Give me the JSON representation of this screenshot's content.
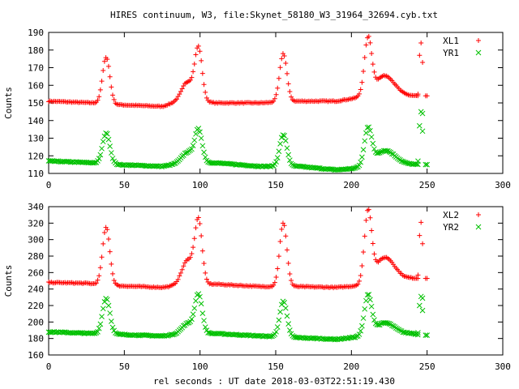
{
  "title": "HIRES continuum, W3, file:Skynet_58180_W3_31964_32694.cyb.txt",
  "xlabel": "rel seconds : UT date 2018-03-03T22:51:19.430",
  "colors": {
    "xl": "#ff0000",
    "yr": "#00c000"
  },
  "chart_data": [
    {
      "type": "scatter",
      "xlim": [
        0,
        300
      ],
      "ylim": [
        110,
        190
      ],
      "xticks": [
        "0",
        "50",
        "100",
        "150",
        "200",
        "250",
        "300"
      ],
      "yticks": [
        "110",
        "120",
        "130",
        "140",
        "150",
        "160",
        "170",
        "180",
        "190"
      ],
      "ylabel": "Counts",
      "legend_position": "top-right",
      "series": [
        {
          "name": "XL1",
          "marker": "plus",
          "color": "#ff0000",
          "base": [
            [
              0,
              151
            ],
            [
              30,
              150
            ],
            [
              45,
              149
            ],
            [
              75,
              148
            ],
            [
              90,
              152
            ],
            [
              110,
              150
            ],
            [
              140,
              150
            ],
            [
              165,
              151
            ],
            [
              190,
              151
            ],
            [
              205,
              153
            ],
            [
              240,
              154
            ],
            [
              248,
              154
            ]
          ],
          "peaks": [
            [
              38,
              176,
              2.4
            ],
            [
              99,
              180,
              2.4
            ],
            [
              155,
              178,
              2.4
            ],
            [
              211,
              185,
              2.4
            ],
            [
              92,
              10,
              4.0
            ],
            [
              222,
              12,
              6.5
            ]
          ],
          "extra_points": [
            [
              244,
              155
            ],
            [
              245,
              177
            ],
            [
              247,
              173
            ],
            [
              246,
              184
            ],
            [
              249,
              154
            ],
            [
              250,
              154
            ]
          ]
        },
        {
          "name": "YR1",
          "marker": "cross",
          "color": "#00c000",
          "base": [
            [
              0,
              117
            ],
            [
              30,
              116
            ],
            [
              45,
              115
            ],
            [
              75,
              114
            ],
            [
              90,
              116
            ],
            [
              110,
              116
            ],
            [
              140,
              114
            ],
            [
              165,
              114
            ],
            [
              190,
              112
            ],
            [
              205,
              113
            ],
            [
              240,
              115
            ],
            [
              248,
              115
            ]
          ],
          "peaks": [
            [
              38,
              133,
              2.4
            ],
            [
              99,
              134,
              2.4
            ],
            [
              155,
              132,
              2.4
            ],
            [
              211,
              134,
              2.4
            ],
            [
              92,
              6,
              4.0
            ],
            [
              222,
              9,
              7.0
            ]
          ],
          "extra_points": [
            [
              244,
              117
            ],
            [
              245,
              137
            ],
            [
              247,
              134
            ],
            [
              246,
              145
            ],
            [
              247,
              144
            ],
            [
              249,
              115
            ],
            [
              250,
              115
            ]
          ]
        }
      ]
    },
    {
      "type": "scatter",
      "xlim": [
        0,
        300
      ],
      "ylim": [
        160,
        340
      ],
      "xticks": [
        "0",
        "50",
        "100",
        "150",
        "200",
        "250",
        "300"
      ],
      "yticks": [
        "160",
        "180",
        "200",
        "220",
        "240",
        "260",
        "280",
        "300",
        "320",
        "340"
      ],
      "ylabel": "Counts",
      "legend_position": "top-right",
      "series": [
        {
          "name": "XL2",
          "marker": "plus",
          "color": "#ff0000",
          "base": [
            [
              0,
              248
            ],
            [
              25,
              247
            ],
            [
              45,
              244
            ],
            [
              75,
              242
            ],
            [
              90,
              245
            ],
            [
              110,
              246
            ],
            [
              140,
              243
            ],
            [
              165,
              243
            ],
            [
              190,
              242
            ],
            [
              205,
              244
            ],
            [
              240,
              253
            ],
            [
              248,
              253
            ]
          ],
          "peaks": [
            [
              38,
              315,
              2.4
            ],
            [
              99,
              320,
              2.4
            ],
            [
              155,
              320,
              2.4
            ],
            [
              211,
              330,
              2.4
            ],
            [
              92,
              30,
              4.0
            ],
            [
              222,
              30,
              6.5
            ]
          ],
          "extra_points": [
            [
              244,
              257
            ],
            [
              245,
              305
            ],
            [
              247,
              295
            ],
            [
              246,
              321
            ],
            [
              249,
              253
            ],
            [
              250,
              253
            ]
          ]
        },
        {
          "name": "YR2",
          "marker": "cross",
          "color": "#00c000",
          "base": [
            [
              0,
              188
            ],
            [
              30,
              186
            ],
            [
              45,
              185
            ],
            [
              75,
              183
            ],
            [
              90,
              186
            ],
            [
              110,
              186
            ],
            [
              140,
              183
            ],
            [
              165,
              181
            ],
            [
              190,
              179
            ],
            [
              205,
              182
            ],
            [
              240,
              186
            ],
            [
              248,
              184
            ]
          ],
          "peaks": [
            [
              38,
              229,
              2.4
            ],
            [
              99,
              232,
              2.4
            ],
            [
              155,
              225,
              2.4
            ],
            [
              211,
              230,
              2.4
            ],
            [
              92,
              12,
              4.0
            ],
            [
              222,
              15,
              6.5
            ]
          ],
          "extra_points": [
            [
              244,
              187
            ],
            [
              245,
              220
            ],
            [
              247,
              214
            ],
            [
              246,
              231
            ],
            [
              247,
              229
            ],
            [
              249,
              184
            ],
            [
              250,
              184
            ]
          ]
        }
      ]
    }
  ]
}
